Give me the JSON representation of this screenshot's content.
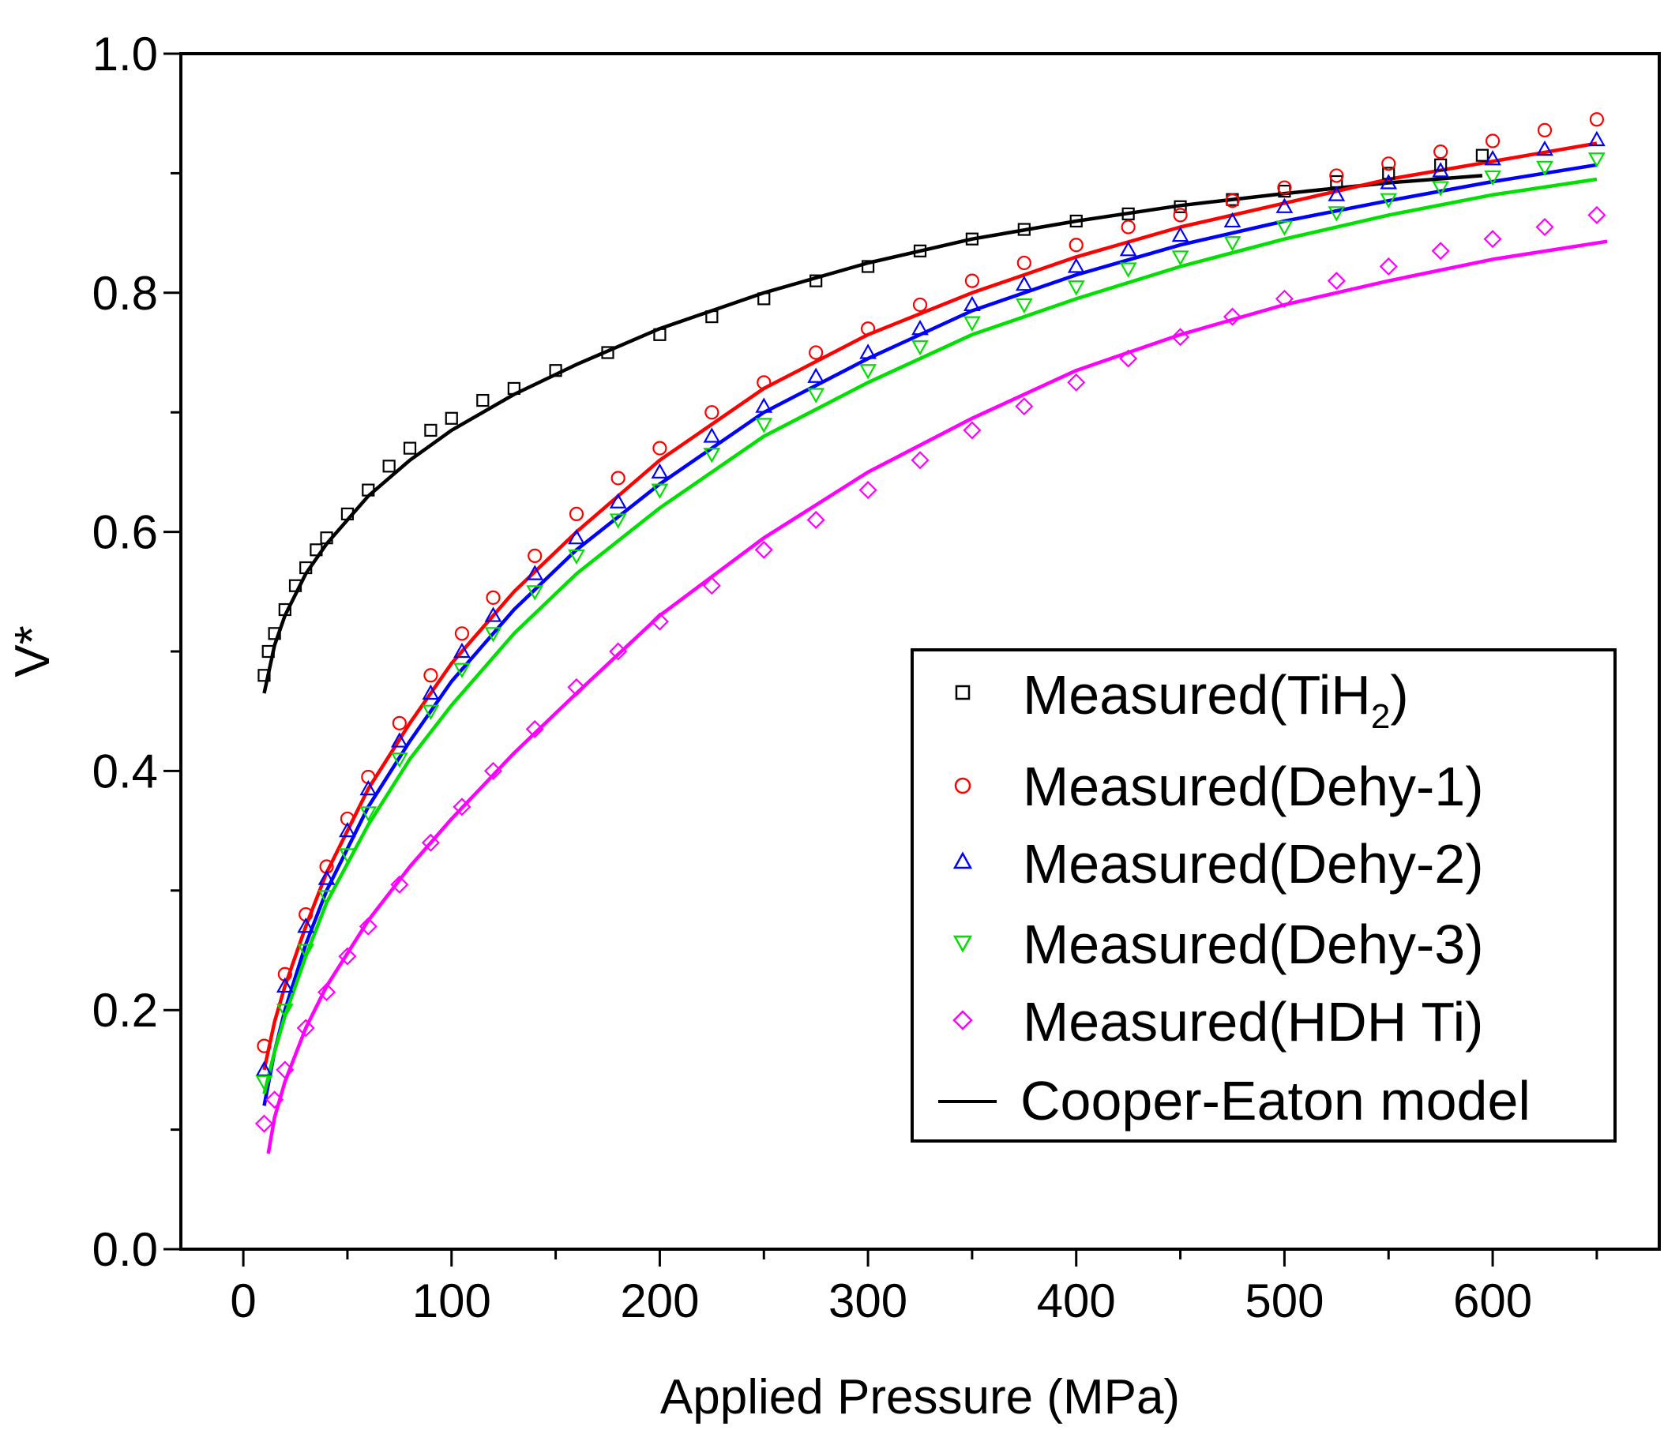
{
  "chart_data": {
    "type": "scatter",
    "title": "",
    "xlabel": "Applied Pressure (MPa)",
    "ylabel": "V*",
    "xlim": [
      -30,
      680
    ],
    "ylim": [
      0.0,
      1.0
    ],
    "xticks": [
      "0",
      "100",
      "200",
      "300",
      "400",
      "500",
      "600"
    ],
    "yticks": [
      "0.0",
      "0.2",
      "0.4",
      "0.6",
      "0.8",
      "1.0"
    ],
    "legend_position": "lower-right",
    "series": [
      {
        "name": "Measured(TiH2)",
        "label_main": "Measured(TiH",
        "label_sub": "2",
        "label_close": ")",
        "marker": "square",
        "color": "#000000",
        "x": [
          10,
          12,
          15,
          20,
          25,
          30,
          35,
          40,
          50,
          60,
          70,
          80,
          90,
          100,
          115,
          130,
          150,
          175,
          200,
          225,
          250,
          275,
          300,
          325,
          350,
          375,
          400,
          425,
          450,
          475,
          500,
          525,
          550,
          575,
          595
        ],
        "y": [
          0.48,
          0.5,
          0.515,
          0.535,
          0.555,
          0.57,
          0.585,
          0.595,
          0.615,
          0.635,
          0.655,
          0.67,
          0.685,
          0.695,
          0.71,
          0.72,
          0.735,
          0.75,
          0.765,
          0.78,
          0.795,
          0.81,
          0.822,
          0.835,
          0.845,
          0.853,
          0.86,
          0.866,
          0.872,
          0.878,
          0.885,
          0.893,
          0.9,
          0.907,
          0.915
        ]
      },
      {
        "name": "Measured(Dehy-1)",
        "label_main": "Measured(Dehy-1)",
        "marker": "circle",
        "color": "#ff0000",
        "x": [
          10,
          20,
          30,
          40,
          50,
          60,
          75,
          90,
          105,
          120,
          140,
          160,
          180,
          200,
          225,
          250,
          275,
          300,
          325,
          350,
          375,
          400,
          425,
          450,
          475,
          500,
          525,
          550,
          575,
          600,
          625,
          650
        ],
        "y": [
          0.17,
          0.23,
          0.28,
          0.32,
          0.36,
          0.395,
          0.44,
          0.48,
          0.515,
          0.545,
          0.58,
          0.615,
          0.645,
          0.67,
          0.7,
          0.725,
          0.75,
          0.77,
          0.79,
          0.81,
          0.825,
          0.84,
          0.855,
          0.865,
          0.877,
          0.888,
          0.898,
          0.908,
          0.918,
          0.927,
          0.936,
          0.945
        ]
      },
      {
        "name": "Measured(Dehy-2)",
        "label_main": "Measured(Dehy-2)",
        "marker": "triangle-up",
        "color": "#0000ff",
        "x": [
          10,
          20,
          30,
          40,
          50,
          60,
          75,
          90,
          105,
          120,
          140,
          160,
          180,
          200,
          225,
          250,
          275,
          300,
          325,
          350,
          375,
          400,
          425,
          450,
          475,
          500,
          525,
          550,
          575,
          600,
          625,
          650
        ],
        "y": [
          0.15,
          0.22,
          0.27,
          0.31,
          0.35,
          0.385,
          0.425,
          0.465,
          0.5,
          0.53,
          0.565,
          0.595,
          0.625,
          0.65,
          0.68,
          0.705,
          0.73,
          0.75,
          0.77,
          0.79,
          0.807,
          0.822,
          0.836,
          0.848,
          0.86,
          0.872,
          0.882,
          0.892,
          0.902,
          0.912,
          0.92,
          0.928
        ]
      },
      {
        "name": "Measured(Dehy-3)",
        "label_main": "Measured(Dehy-3)",
        "marker": "triangle-down",
        "color": "#00e000",
        "x": [
          10,
          20,
          30,
          40,
          50,
          60,
          75,
          90,
          105,
          120,
          140,
          160,
          180,
          200,
          225,
          250,
          275,
          300,
          325,
          350,
          375,
          400,
          425,
          450,
          475,
          500,
          525,
          550,
          575,
          600,
          625,
          650
        ],
        "y": [
          0.14,
          0.2,
          0.25,
          0.295,
          0.33,
          0.365,
          0.41,
          0.45,
          0.485,
          0.515,
          0.55,
          0.58,
          0.61,
          0.635,
          0.665,
          0.69,
          0.715,
          0.735,
          0.755,
          0.775,
          0.79,
          0.805,
          0.82,
          0.83,
          0.842,
          0.855,
          0.867,
          0.878,
          0.888,
          0.897,
          0.905,
          0.912
        ]
      },
      {
        "name": "Measured(HDH Ti)",
        "label_main": "Measured(HDH Ti)",
        "marker": "diamond",
        "color": "#ff00ff",
        "x": [
          10,
          15,
          20,
          30,
          40,
          50,
          60,
          75,
          90,
          105,
          120,
          140,
          160,
          180,
          200,
          225,
          250,
          275,
          300,
          325,
          350,
          375,
          400,
          425,
          450,
          475,
          500,
          525,
          550,
          575,
          600,
          625,
          650
        ],
        "y": [
          0.105,
          0.125,
          0.15,
          0.185,
          0.215,
          0.245,
          0.27,
          0.305,
          0.34,
          0.37,
          0.4,
          0.435,
          0.47,
          0.5,
          0.525,
          0.555,
          0.585,
          0.61,
          0.635,
          0.66,
          0.685,
          0.705,
          0.725,
          0.745,
          0.763,
          0.78,
          0.795,
          0.81,
          0.822,
          0.835,
          0.845,
          0.855,
          0.865
        ]
      }
    ],
    "model": {
      "name": "Cooper-Eaton model",
      "label_main": "Cooper-Eaton model",
      "marker": "line",
      "color": "#000000",
      "curves": [
        {
          "for": "Measured(TiH2)",
          "color": "#000000",
          "x": [
            10,
            15,
            20,
            30,
            40,
            60,
            80,
            100,
            130,
            160,
            200,
            250,
            300,
            350,
            400,
            450,
            500,
            550,
            595
          ],
          "y": [
            0.465,
            0.505,
            0.53,
            0.565,
            0.59,
            0.63,
            0.66,
            0.685,
            0.715,
            0.74,
            0.77,
            0.8,
            0.825,
            0.845,
            0.86,
            0.873,
            0.883,
            0.892,
            0.898
          ]
        },
        {
          "for": "Measured(Dehy-1)",
          "color": "#ff0000",
          "x": [
            10,
            15,
            20,
            30,
            40,
            60,
            80,
            100,
            130,
            160,
            200,
            250,
            300,
            350,
            400,
            450,
            500,
            550,
            600,
            650
          ],
          "y": [
            0.15,
            0.19,
            0.22,
            0.27,
            0.315,
            0.385,
            0.44,
            0.49,
            0.55,
            0.6,
            0.66,
            0.72,
            0.765,
            0.8,
            0.83,
            0.855,
            0.875,
            0.895,
            0.91,
            0.925
          ]
        },
        {
          "for": "Measured(Dehy-2)",
          "color": "#0000ff",
          "x": [
            10,
            15,
            20,
            30,
            40,
            60,
            80,
            100,
            130,
            160,
            200,
            250,
            300,
            350,
            400,
            450,
            500,
            550,
            600,
            650
          ],
          "y": [
            0.12,
            0.165,
            0.2,
            0.255,
            0.3,
            0.37,
            0.425,
            0.475,
            0.535,
            0.585,
            0.64,
            0.7,
            0.745,
            0.785,
            0.815,
            0.84,
            0.86,
            0.877,
            0.893,
            0.907
          ]
        },
        {
          "for": "Measured(Dehy-3)",
          "color": "#00e000",
          "x": [
            10,
            15,
            20,
            30,
            40,
            60,
            80,
            100,
            130,
            160,
            200,
            250,
            300,
            350,
            400,
            450,
            500,
            550,
            600,
            650
          ],
          "y": [
            0.13,
            0.165,
            0.195,
            0.245,
            0.29,
            0.355,
            0.41,
            0.455,
            0.515,
            0.565,
            0.62,
            0.68,
            0.725,
            0.765,
            0.795,
            0.822,
            0.845,
            0.865,
            0.882,
            0.895
          ]
        },
        {
          "for": "Measured(HDH Ti)",
          "color": "#ff00ff",
          "x": [
            12,
            15,
            20,
            30,
            40,
            60,
            80,
            100,
            130,
            160,
            200,
            250,
            300,
            350,
            400,
            450,
            500,
            550,
            600,
            655
          ],
          "y": [
            0.08,
            0.11,
            0.14,
            0.185,
            0.22,
            0.275,
            0.32,
            0.36,
            0.415,
            0.465,
            0.53,
            0.595,
            0.65,
            0.695,
            0.735,
            0.765,
            0.79,
            0.81,
            0.828,
            0.843
          ]
        }
      ]
    }
  }
}
